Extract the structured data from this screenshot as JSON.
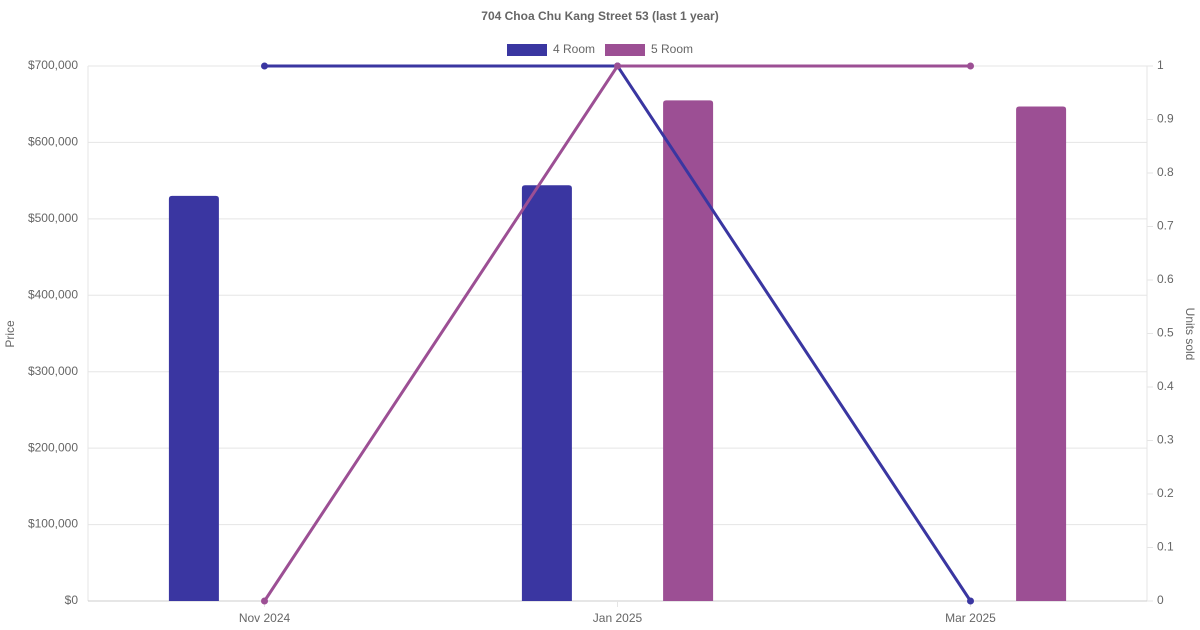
{
  "chart_data": {
    "type": "bar",
    "title": "704 Choa Chu Kang Street 53 (last 1 year)",
    "categories": [
      "Nov 2024",
      "Jan 2025",
      "Mar 2025"
    ],
    "y_label": "Price",
    "y2_label": "Units sold",
    "series": [
      {
        "name": "4 Room",
        "color": "#3a36a1",
        "values": [
          530000,
          544000,
          null
        ]
      },
      {
        "name": "5 Room",
        "color": "#9c4f94",
        "values": [
          null,
          655000,
          647000
        ]
      },
      {
        "type": "line",
        "axis": "y2",
        "color": "#3a36a1",
        "values": [
          1,
          1,
          0
        ]
      },
      {
        "type": "line",
        "axis": "y2",
        "color": "#9c4f94",
        "values": [
          0,
          1,
          1
        ]
      }
    ],
    "ylim": [
      0,
      700000
    ],
    "yticks": [
      {
        "value": 0,
        "label": "$0"
      },
      {
        "value": 100000,
        "label": "$100,000"
      },
      {
        "value": 200000,
        "label": "$200,000"
      },
      {
        "value": 300000,
        "label": "$300,000"
      },
      {
        "value": 400000,
        "label": "$400,000"
      },
      {
        "value": 500000,
        "label": "$500,000"
      },
      {
        "value": 600000,
        "label": "$600,000"
      },
      {
        "value": 700000,
        "label": "$700,000"
      }
    ],
    "y2lim": [
      0,
      1
    ],
    "y2ticks": [
      0,
      0.1,
      0.2,
      0.3,
      0.4,
      0.5,
      0.6,
      0.7,
      0.8,
      0.9,
      1
    ],
    "grid": true
  }
}
